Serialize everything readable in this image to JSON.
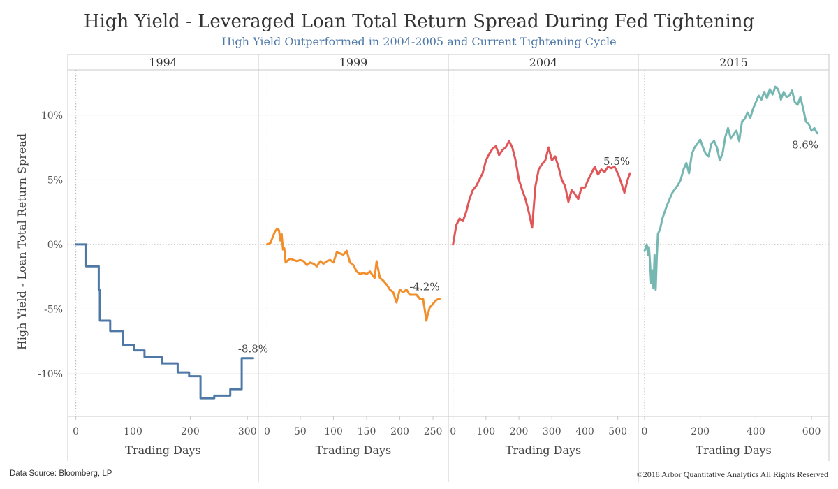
{
  "title": "High Yield - Leveraged Loan Total Return Spread During Fed Tightening",
  "subtitle": "High Yield Outperformed in 2004-2005 and Current Tightening Cycle",
  "source": "Data Source: Bloomberg, LP",
  "copyright": "©2018 Arbor Quantitative Analytics  All Rights Reserved",
  "chart_data": {
    "type": "line",
    "ylabel": "High Yield - Loan Total Return Spread",
    "xlabel": "Trading Days",
    "ylim": [
      -13.3,
      13.5
    ],
    "yticks": [
      10,
      5,
      0,
      -5,
      -10
    ],
    "ytick_labels": [
      "10%",
      "5%",
      "0%",
      "-5%",
      "-10%"
    ],
    "grid": true,
    "panels": [
      {
        "name": "1994",
        "color": "#4e79a7",
        "end_label": "-8.8%",
        "xlim": [
          -13,
          318
        ],
        "xticks": [
          0,
          100,
          200,
          300
        ],
        "x": [
          0,
          18,
          18,
          40,
          40,
          42,
          42,
          60,
          60,
          82,
          82,
          102,
          102,
          120,
          120,
          150,
          150,
          178,
          178,
          198,
          198,
          218,
          218,
          242,
          242,
          270,
          270,
          290,
          290,
          310
        ],
        "y": [
          0,
          0,
          -1.7,
          -1.7,
          -3.5,
          -3.5,
          -5.9,
          -5.9,
          -6.7,
          -6.7,
          -7.8,
          -7.8,
          -8.2,
          -8.2,
          -8.7,
          -8.7,
          -9.2,
          -9.2,
          -9.9,
          -9.9,
          -10.2,
          -10.2,
          -11.9,
          -11.9,
          -11.7,
          -11.7,
          -11.2,
          -11.2,
          -8.8,
          -8.8
        ]
      },
      {
        "name": "1999",
        "color": "#f28e2b",
        "end_label": "-4.2%",
        "xlim": [
          -12,
          272
        ],
        "xticks": [
          0,
          50,
          100,
          150,
          200,
          250
        ],
        "x": [
          0,
          5,
          8,
          12,
          15,
          18,
          20,
          22,
          24,
          26,
          28,
          32,
          35,
          40,
          45,
          50,
          55,
          60,
          65,
          70,
          75,
          80,
          85,
          90,
          95,
          100,
          105,
          110,
          115,
          120,
          125,
          130,
          135,
          140,
          145,
          150,
          155,
          162,
          165,
          170,
          175,
          180,
          185,
          190,
          195,
          200,
          205,
          210,
          215,
          220,
          225,
          230,
          235,
          240,
          242,
          245,
          250,
          255,
          260
        ],
        "y": [
          0,
          0.1,
          0.5,
          1,
          1.2,
          1.1,
          0.3,
          0.8,
          -0.4,
          -0.3,
          -1.4,
          -1.2,
          -1.1,
          -1.2,
          -1.3,
          -1.2,
          -1.3,
          -1.6,
          -1.4,
          -1.5,
          -1.7,
          -1.3,
          -1.5,
          -1.3,
          -1.2,
          -1.4,
          -0.6,
          -0.7,
          -0.8,
          -0.5,
          -1.4,
          -1.6,
          -2.1,
          -2.3,
          -2.2,
          -2.3,
          -2.1,
          -2.6,
          -1.3,
          -2.6,
          -2.8,
          -3.1,
          -3.5,
          -3.7,
          -4.5,
          -3.5,
          -3.7,
          -3.5,
          -3.9,
          -3.9,
          -3.9,
          -4.2,
          -4.2,
          -5.9,
          -5.4,
          -4.9,
          -4.6,
          -4.3,
          -4.2
        ]
      },
      {
        "name": "2004",
        "color": "#e15759",
        "end_label": "5.5%",
        "xlim": [
          -12,
          560
        ],
        "xticks": [
          0,
          100,
          200,
          300,
          400,
          500
        ],
        "x": [
          0,
          10,
          20,
          30,
          40,
          50,
          60,
          70,
          80,
          90,
          100,
          110,
          120,
          130,
          140,
          150,
          160,
          170,
          180,
          190,
          200,
          210,
          220,
          230,
          240,
          250,
          260,
          270,
          280,
          290,
          300,
          310,
          320,
          330,
          340,
          350,
          360,
          370,
          380,
          390,
          400,
          410,
          420,
          430,
          440,
          450,
          460,
          470,
          480,
          490,
          500,
          510,
          520,
          530,
          537
        ],
        "y": [
          0,
          1.5,
          2.0,
          1.8,
          2.5,
          3.5,
          4.2,
          4.5,
          5.0,
          5.5,
          6.5,
          7.0,
          7.4,
          7.6,
          6.9,
          7.3,
          7.5,
          8.0,
          7.5,
          6.5,
          5.0,
          4.2,
          3.5,
          2.5,
          1.3,
          4.5,
          5.8,
          6.2,
          6.5,
          7.5,
          6.5,
          6.8,
          6.0,
          5.0,
          4.5,
          3.3,
          4.2,
          3.9,
          3.5,
          4.4,
          4.4,
          5.0,
          5.5,
          6.0,
          5.4,
          5.8,
          5.6,
          6.0,
          5.9,
          6.0,
          5.5,
          4.8,
          4.0,
          5.0,
          5.5
        ]
      },
      {
        "name": "2015",
        "color": "#76b7b2",
        "end_label": "8.6%",
        "xlim": [
          -20,
          660
        ],
        "xticks": [
          0,
          200,
          400,
          600
        ],
        "x": [
          0,
          8,
          12,
          16,
          20,
          24,
          28,
          32,
          36,
          40,
          44,
          48,
          56,
          64,
          72,
          80,
          90,
          100,
          110,
          120,
          130,
          140,
          150,
          160,
          170,
          180,
          190,
          200,
          210,
          220,
          230,
          240,
          250,
          260,
          270,
          280,
          290,
          300,
          310,
          320,
          330,
          340,
          350,
          360,
          370,
          380,
          390,
          400,
          410,
          420,
          430,
          440,
          450,
          460,
          470,
          480,
          490,
          500,
          510,
          520,
          530,
          540,
          550,
          560,
          570,
          580,
          590,
          600,
          610,
          620
        ],
        "y": [
          -0.5,
          0,
          -0.8,
          -0.2,
          -1.5,
          -3.0,
          -2.0,
          -3.4,
          -0.8,
          -3.5,
          -1.0,
          0.8,
          1.2,
          2.0,
          2.5,
          3.0,
          3.5,
          4.0,
          4.3,
          4.6,
          5.0,
          5.8,
          6.3,
          5.5,
          7.0,
          7.5,
          7.8,
          8.1,
          7.5,
          7.0,
          6.8,
          7.8,
          8.0,
          7.5,
          6.5,
          7.0,
          8.3,
          9.0,
          8.2,
          8.5,
          8.8,
          8.0,
          9.5,
          9.7,
          10.2,
          9.8,
          10.5,
          11.0,
          11.5,
          11.2,
          11.8,
          11.3,
          12.0,
          11.6,
          12.2,
          12.0,
          11.2,
          11.8,
          11.4,
          11.5,
          11.9,
          11.0,
          10.8,
          11.4,
          10.5,
          9.5,
          9.3,
          8.8,
          9.0,
          8.6
        ]
      }
    ]
  }
}
